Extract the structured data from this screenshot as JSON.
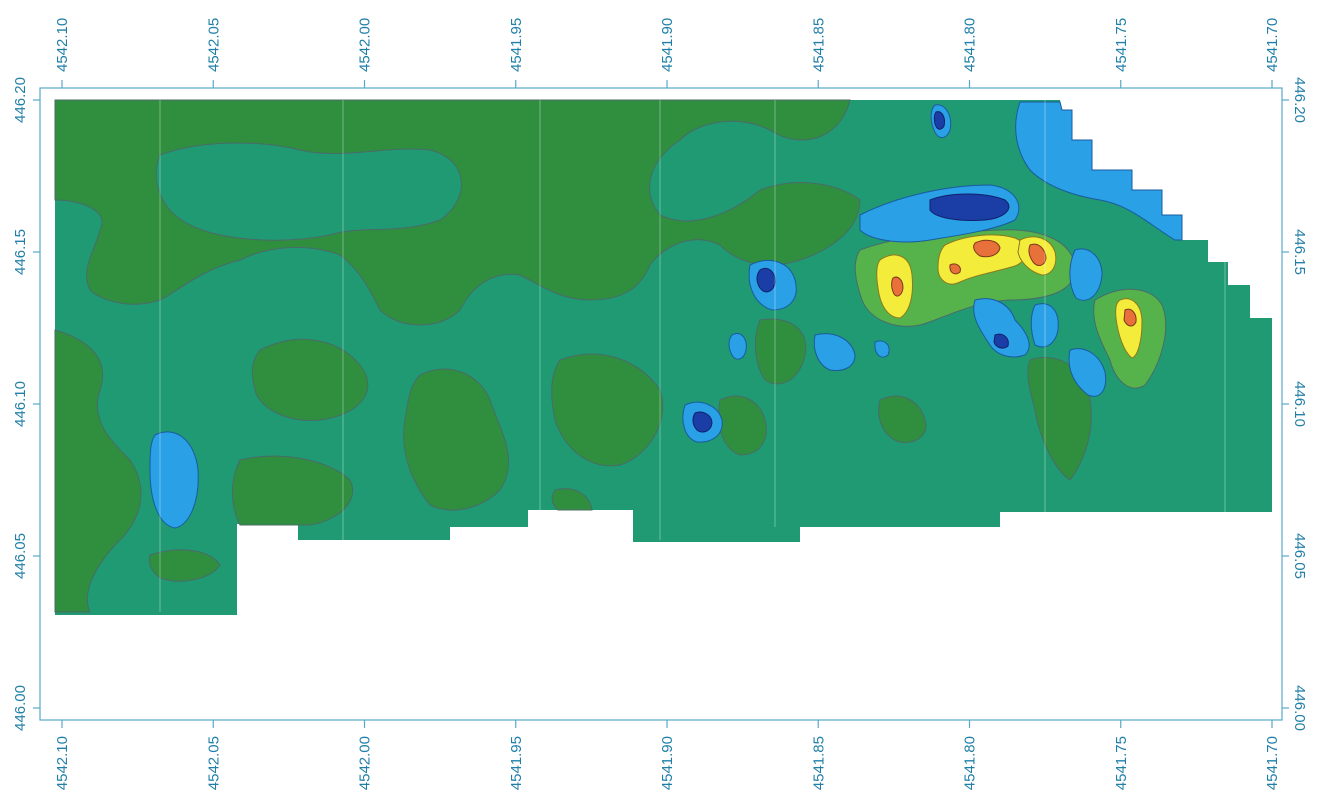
{
  "map": {
    "type": "contour",
    "x_axis": {
      "direction": "decreasing-left-to-right",
      "range": [
        4542.1,
        4541.7
      ],
      "ticks": [
        "4542.10",
        "4542.05",
        "4542.00",
        "4541.95",
        "4541.90",
        "4541.85",
        "4541.80",
        "4541.75",
        "4541.70"
      ]
    },
    "y_axis": {
      "range": [
        446.0,
        446.2
      ],
      "ticks": [
        "446.00",
        "446.05",
        "446.10",
        "446.15",
        "446.20"
      ]
    },
    "colors": {
      "dark_green": "#2f8f3f",
      "teal_green": "#1f9a72",
      "light_blue": "#2aa0e6",
      "dark_blue": "#1b3ea6",
      "yellow": "#f4ec3a",
      "orange": "#e8703a",
      "axis": "#5aa7c8",
      "label": "#1f7fa8"
    }
  }
}
